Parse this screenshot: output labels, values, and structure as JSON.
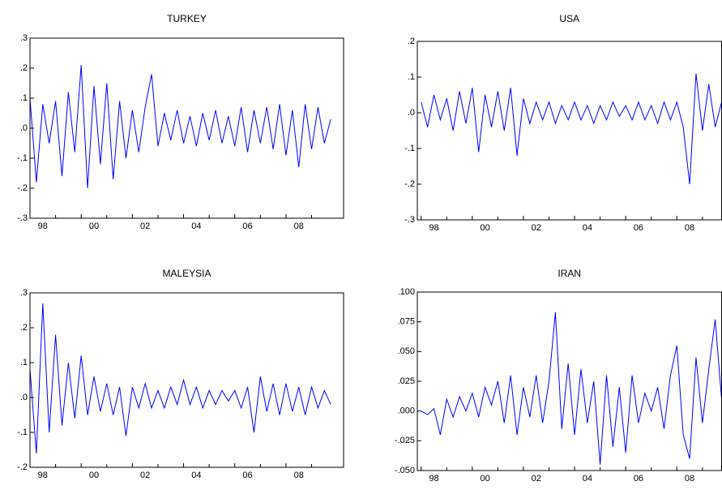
{
  "chart_data": [
    {
      "type": "line",
      "title": "TURKEY",
      "color": "#0000ff",
      "x": [
        1998.0,
        1998.25,
        1998.5,
        1998.75,
        1999.0,
        1999.25,
        1999.5,
        1999.75,
        2000.0,
        2000.25,
        2000.5,
        2000.75,
        2001.0,
        2001.25,
        2001.5,
        2001.75,
        2002.0,
        2002.25,
        2002.5,
        2002.75,
        2003.0,
        2003.25,
        2003.5,
        2003.75,
        2004.0,
        2004.25,
        2004.5,
        2004.75,
        2005.0,
        2005.25,
        2005.5,
        2005.75,
        2006.0,
        2006.25,
        2006.5,
        2006.75,
        2007.0,
        2007.25,
        2007.5,
        2007.75,
        2008.0,
        2008.25,
        2008.5,
        2008.75,
        2009.0,
        2009.25,
        2009.5,
        2009.75
      ],
      "values": [
        0.1,
        -0.18,
        0.08,
        -0.05,
        0.09,
        -0.16,
        0.12,
        -0.08,
        0.21,
        -0.2,
        0.14,
        -0.12,
        0.15,
        -0.17,
        0.09,
        -0.1,
        0.06,
        -0.08,
        0.07,
        0.18,
        -0.06,
        0.05,
        -0.04,
        0.06,
        -0.05,
        0.04,
        -0.06,
        0.05,
        -0.04,
        0.06,
        -0.05,
        0.04,
        -0.06,
        0.07,
        -0.08,
        0.06,
        -0.05,
        0.07,
        -0.07,
        0.08,
        -0.09,
        0.06,
        -0.13,
        0.08,
        -0.07,
        0.07,
        -0.05,
        0.03
      ],
      "xlim": [
        1998.0,
        2010.25
      ],
      "xticks": [
        {
          "value": 1998.5,
          "label": "98"
        },
        {
          "value": 2000.5,
          "label": "00"
        },
        {
          "value": 2002.5,
          "label": "02"
        },
        {
          "value": 2004.5,
          "label": "04"
        },
        {
          "value": 2006.5,
          "label": "06"
        },
        {
          "value": 2008.5,
          "label": "08"
        }
      ],
      "ylim": [
        -0.3,
        0.3
      ],
      "yticks": [
        {
          "value": 0.3,
          "label": ".3"
        },
        {
          "value": 0.2,
          "label": ".2"
        },
        {
          "value": 0.1,
          "label": ".1"
        },
        {
          "value": 0,
          "label": ".0"
        },
        {
          "value": -0.1,
          "label": "-.1"
        },
        {
          "value": -0.2,
          "label": "-.2"
        },
        {
          "value": -0.3,
          "label": "-.3"
        }
      ]
    },
    {
      "type": "line",
      "title": "USA",
      "color": "#0000ff",
      "x": [
        1998.0,
        1998.25,
        1998.5,
        1998.75,
        1999.0,
        1999.25,
        1999.5,
        1999.75,
        2000.0,
        2000.25,
        2000.5,
        2000.75,
        2001.0,
        2001.25,
        2001.5,
        2001.75,
        2002.0,
        2002.25,
        2002.5,
        2002.75,
        2003.0,
        2003.25,
        2003.5,
        2003.75,
        2004.0,
        2004.25,
        2004.5,
        2004.75,
        2005.0,
        2005.25,
        2005.5,
        2005.75,
        2006.0,
        2006.25,
        2006.5,
        2006.75,
        2007.0,
        2007.25,
        2007.5,
        2007.75,
        2008.0,
        2008.25,
        2008.5,
        2008.75,
        2009.0,
        2009.25,
        2009.5,
        2009.75
      ],
      "values": [
        0.03,
        -0.04,
        0.05,
        -0.02,
        0.04,
        -0.05,
        0.06,
        -0.03,
        0.07,
        -0.11,
        0.05,
        -0.04,
        0.06,
        -0.05,
        0.07,
        -0.12,
        0.04,
        -0.03,
        0.03,
        -0.02,
        0.03,
        -0.03,
        0.02,
        -0.02,
        0.03,
        -0.02,
        0.02,
        -0.03,
        0.02,
        -0.02,
        0.03,
        -0.01,
        0.02,
        -0.02,
        0.03,
        -0.02,
        0.02,
        -0.03,
        0.03,
        -0.02,
        0.03,
        -0.04,
        -0.2,
        0.11,
        -0.05,
        0.08,
        -0.04,
        0.03
      ],
      "xlim": [
        1997.85,
        2009.75
      ],
      "xticks": [
        {
          "value": 1998.5,
          "label": "98"
        },
        {
          "value": 2000.5,
          "label": "00"
        },
        {
          "value": 2002.5,
          "label": "02"
        },
        {
          "value": 2004.5,
          "label": "04"
        },
        {
          "value": 2006.5,
          "label": "06"
        },
        {
          "value": 2008.5,
          "label": "08"
        }
      ],
      "ylim": [
        -0.3,
        0.2
      ],
      "yticks": [
        {
          "value": 0.2,
          "label": ".2"
        },
        {
          "value": 0.1,
          "label": ".1"
        },
        {
          "value": 0,
          "label": ".0"
        },
        {
          "value": -0.1,
          "label": "-.1"
        },
        {
          "value": -0.2,
          "label": "-.2"
        },
        {
          "value": -0.3,
          "label": "-.3"
        }
      ]
    },
    {
      "type": "line",
      "title": "MALEYSIA",
      "color": "#0000ff",
      "x": [
        1998.0,
        1998.25,
        1998.5,
        1998.75,
        1999.0,
        1999.25,
        1999.5,
        1999.75,
        2000.0,
        2000.25,
        2000.5,
        2000.75,
        2001.0,
        2001.25,
        2001.5,
        2001.75,
        2002.0,
        2002.25,
        2002.5,
        2002.75,
        2003.0,
        2003.25,
        2003.5,
        2003.75,
        2004.0,
        2004.25,
        2004.5,
        2004.75,
        2005.0,
        2005.25,
        2005.5,
        2005.75,
        2006.0,
        2006.25,
        2006.5,
        2006.75,
        2007.0,
        2007.25,
        2007.5,
        2007.75,
        2008.0,
        2008.25,
        2008.5,
        2008.75,
        2009.0,
        2009.25,
        2009.5,
        2009.75
      ],
      "values": [
        0.08,
        -0.16,
        0.27,
        -0.1,
        0.18,
        -0.08,
        0.1,
        -0.06,
        0.12,
        -0.05,
        0.06,
        -0.04,
        0.04,
        -0.05,
        0.03,
        -0.11,
        0.03,
        -0.03,
        0.04,
        -0.03,
        0.02,
        -0.03,
        0.03,
        -0.02,
        0.05,
        -0.02,
        0.03,
        -0.03,
        0.02,
        -0.02,
        0.02,
        -0.01,
        0.02,
        -0.03,
        0.03,
        -0.1,
        0.06,
        -0.04,
        0.04,
        -0.05,
        0.04,
        -0.04,
        0.03,
        -0.05,
        0.03,
        -0.03,
        0.02,
        -0.02
      ],
      "xlim": [
        1998.0,
        2010.25
      ],
      "xticks": [
        {
          "value": 1998.5,
          "label": "98"
        },
        {
          "value": 2000.5,
          "label": "00"
        },
        {
          "value": 2002.5,
          "label": "02"
        },
        {
          "value": 2004.5,
          "label": "04"
        },
        {
          "value": 2006.5,
          "label": "06"
        },
        {
          "value": 2008.5,
          "label": "08"
        }
      ],
      "ylim": [
        -0.2,
        0.3
      ],
      "yticks": [
        {
          "value": 0.3,
          "label": ".3"
        },
        {
          "value": 0.2,
          "label": ".2"
        },
        {
          "value": 0.1,
          "label": ".1"
        },
        {
          "value": 0,
          "label": ".0"
        },
        {
          "value": -0.1,
          "label": "-.1"
        },
        {
          "value": -0.2,
          "label": "-.2"
        }
      ]
    },
    {
      "type": "line",
      "title": "IRAN",
      "color": "#0000ff",
      "x": [
        1998.0,
        1998.25,
        1998.5,
        1998.75,
        1999.0,
        1999.25,
        1999.5,
        1999.75,
        2000.0,
        2000.25,
        2000.5,
        2000.75,
        2001.0,
        2001.25,
        2001.5,
        2001.75,
        2002.0,
        2002.25,
        2002.5,
        2002.75,
        2003.0,
        2003.25,
        2003.5,
        2003.75,
        2004.0,
        2004.25,
        2004.5,
        2004.75,
        2005.0,
        2005.25,
        2005.5,
        2005.75,
        2006.0,
        2006.25,
        2006.5,
        2006.75,
        2007.0,
        2007.25,
        2007.5,
        2007.75,
        2008.0,
        2008.25,
        2008.5,
        2008.75,
        2009.0,
        2009.25,
        2009.5,
        2009.75
      ],
      "values": [
        0.0,
        -0.003,
        0.002,
        -0.02,
        0.01,
        -0.005,
        0.012,
        0.0,
        0.015,
        -0.005,
        0.02,
        0.005,
        0.025,
        -0.01,
        0.03,
        -0.02,
        0.02,
        -0.005,
        0.03,
        -0.01,
        0.025,
        0.083,
        -0.015,
        0.04,
        -0.02,
        0.035,
        -0.01,
        0.025,
        -0.045,
        0.03,
        -0.03,
        0.02,
        -0.035,
        0.03,
        -0.01,
        0.015,
        0.0,
        0.02,
        -0.015,
        0.03,
        0.055,
        -0.02,
        -0.04,
        0.045,
        -0.01,
        0.035,
        0.077,
        0.01
      ],
      "xlim": [
        1997.85,
        2009.75
      ],
      "xticks": [
        {
          "value": 1998.5,
          "label": "98"
        },
        {
          "value": 2000.5,
          "label": "00"
        },
        {
          "value": 2002.5,
          "label": "02"
        },
        {
          "value": 2004.5,
          "label": "04"
        },
        {
          "value": 2006.5,
          "label": "06"
        },
        {
          "value": 2008.5,
          "label": "08"
        }
      ],
      "ylim": [
        -0.05,
        0.1
      ],
      "yticks": [
        {
          "value": 0.1,
          "label": ".100"
        },
        {
          "value": 0.075,
          "label": ".075"
        },
        {
          "value": 0.05,
          "label": ".050"
        },
        {
          "value": 0.025,
          "label": ".025"
        },
        {
          "value": 0,
          "label": ".000"
        },
        {
          "value": -0.025,
          "label": "-.025"
        },
        {
          "value": -0.05,
          "label": "-.050"
        }
      ]
    }
  ]
}
